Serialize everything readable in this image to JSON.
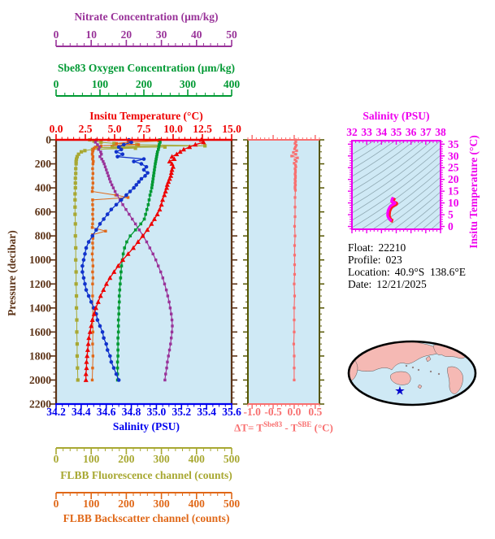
{
  "figure": {
    "bg": "#FFFFFF"
  },
  "colors": {
    "nitrate": "#993399",
    "oxygen": "#009933",
    "temperature": "#EE0000",
    "pressure_axis": "#5C3317",
    "salinity": "#0000EE",
    "salinity_curve": "#1133CC",
    "fluorescence": "#A8A832",
    "backscatter": "#E06818",
    "delta_t": "#F87070",
    "delta_t_side_axis": "#555500",
    "ts_frame": "#EE00EE",
    "ts_curve": "#FF00FF",
    "ts_curve_outline": "#FF2020",
    "contour": "#8FA8B2",
    "plot_bg": "#CFE9F5",
    "map_land": "#F5B9B4",
    "map_outline": "#000000",
    "map_star": "#0000CC"
  },
  "axes": {
    "nitrate": {
      "title": "Nitrate Concentration (μm/kg)",
      "min": 0,
      "max": 50,
      "major": 10,
      "minor": 2,
      "labels": [
        "0",
        "10",
        "20",
        "30",
        "40",
        "50"
      ]
    },
    "oxygen": {
      "title": "Sbe83 Oxygen Concentration (μm/kg)",
      "min": 0,
      "max": 400,
      "major": 100,
      "minor": 20,
      "labels": [
        "0",
        "100",
        "200",
        "300",
        "400"
      ]
    },
    "temperature": {
      "title": "Insitu Temperature (°C)",
      "min": 0,
      "max": 15,
      "major": 2.5,
      "minor": 0.5,
      "labels": [
        "0.0",
        "2.5",
        "5.0",
        "7.5",
        "10.0",
        "12.5",
        "15.0"
      ]
    },
    "pressure": {
      "title": "Pressure (decibar)",
      "min": 0,
      "max": 2200,
      "major": 200,
      "minor": 50,
      "labels": [
        "0",
        "200",
        "400",
        "600",
        "800",
        "1000",
        "1200",
        "1400",
        "1600",
        "1800",
        "2000",
        "2200"
      ]
    },
    "salinity": {
      "title": "Salinity (PSU)",
      "min": 34.2,
      "max": 35.6,
      "major": 0.2,
      "minor": 0.05,
      "labels": [
        "34.2",
        "34.4",
        "34.6",
        "34.8",
        "35.0",
        "35.2",
        "35.4",
        "35.6"
      ]
    },
    "fluorescence": {
      "title": "FLBB Fluorescence channel (counts)",
      "min": 0,
      "max": 500,
      "major": 100,
      "minor": 20,
      "labels": [
        "0",
        "100",
        "200",
        "300",
        "400",
        "500"
      ]
    },
    "backscatter": {
      "title": "FLBB Backscatter channel (counts)",
      "min": 0,
      "max": 500,
      "major": 100,
      "minor": 20,
      "labels": [
        "0",
        "100",
        "200",
        "300",
        "400",
        "500"
      ]
    },
    "delta_t": {
      "min": -1.1,
      "max": 0.6,
      "major": 0.5,
      "minor": 0.1,
      "labels": [
        "-1.0",
        "-0.5",
        "0.0",
        "0.5"
      ],
      "label_values": [
        -1.0,
        -0.5,
        0.0,
        0.5
      ],
      "formula": {
        "prefix": "ΔT= T",
        "sup1": "Sbe83",
        "mid": " - T",
        "sup2": "SBE",
        "suffix": " (°C)"
      }
    },
    "ts_salinity": {
      "title": "Salinity (PSU)",
      "min": 32,
      "max": 38,
      "major": 1,
      "minor": 0.25,
      "labels": [
        "32",
        "33",
        "34",
        "35",
        "36",
        "37",
        "38"
      ]
    },
    "ts_temperature": {
      "title": "Insitu Temperature (°C)",
      "min": -1.2,
      "max": 36.5,
      "major": 5,
      "minor": 1,
      "labels": [
        "0",
        "5",
        "10",
        "15",
        "20",
        "25",
        "30",
        "35"
      ],
      "label_values": [
        0,
        5,
        10,
        15,
        20,
        25,
        30,
        35
      ]
    }
  },
  "info": {
    "rows": [
      {
        "label": "Float:",
        "value": "22210"
      },
      {
        "label": "Profile:",
        "value": "023"
      },
      {
        "label": "Location:",
        "value": "40.9°S  138.6°E"
      },
      {
        "label": "Date:",
        "value": "12/21/2025"
      }
    ]
  },
  "chart_data": [
    {
      "type": "line",
      "title": "Float profile vs pressure",
      "ylabel": "Pressure (decibar)",
      "y_range": [
        0,
        2200
      ],
      "series": [
        {
          "name": "Insitu Temperature",
          "units": "°C",
          "color_key": "temperature",
          "marker": "triangle",
          "x_range": [
            0,
            15
          ],
          "pressure": [
            0,
            20,
            40,
            60,
            80,
            100,
            120,
            140,
            160,
            180,
            200,
            225,
            250,
            275,
            300,
            325,
            350,
            375,
            400,
            430,
            460,
            500,
            540,
            580,
            620,
            660,
            700,
            750,
            800,
            850,
            900,
            950,
            1000,
            1050,
            1100,
            1150,
            1200,
            1250,
            1300,
            1350,
            1400,
            1450,
            1500,
            1550,
            1600,
            1650,
            1700,
            1750,
            1800,
            1850,
            1900,
            1950,
            2000
          ],
          "values": [
            12.4,
            12.6,
            11.9,
            11.4,
            10.9,
            10.6,
            10.3,
            9.9,
            10.1,
            9.7,
            9.9,
            10.0,
            9.9,
            9.85,
            9.8,
            9.7,
            9.6,
            9.5,
            9.45,
            9.35,
            9.25,
            9.1,
            9.0,
            8.85,
            8.65,
            8.4,
            8.15,
            7.8,
            7.4,
            7.0,
            6.6,
            6.15,
            5.7,
            5.3,
            4.95,
            4.6,
            4.3,
            4.05,
            3.8,
            3.6,
            3.4,
            3.25,
            3.1,
            3.0,
            2.9,
            2.8,
            2.75,
            2.7,
            2.65,
            2.6,
            2.6,
            2.55,
            2.55
          ]
        },
        {
          "name": "Salinity",
          "units": "PSU",
          "color_key": "salinity_curve",
          "marker": "circle",
          "x_range": [
            34.2,
            35.6
          ],
          "pressure": [
            0,
            20,
            40,
            60,
            80,
            100,
            120,
            140,
            160,
            180,
            200,
            225,
            250,
            275,
            300,
            325,
            350,
            375,
            400,
            430,
            460,
            500,
            540,
            580,
            620,
            660,
            700,
            750,
            800,
            850,
            900,
            950,
            1000,
            1050,
            1100,
            1150,
            1200,
            1250,
            1300,
            1350,
            1400,
            1450,
            1500,
            1550,
            1600,
            1650,
            1700,
            1750,
            1800,
            1850,
            1900,
            1950,
            2000
          ],
          "values": [
            34.78,
            34.8,
            34.74,
            34.7,
            34.72,
            34.68,
            34.73,
            34.69,
            34.9,
            34.82,
            34.88,
            34.92,
            34.9,
            34.93,
            34.91,
            34.88,
            34.86,
            34.84,
            34.82,
            34.79,
            34.76,
            34.72,
            34.68,
            34.64,
            34.61,
            34.58,
            34.55,
            34.52,
            34.49,
            34.46,
            34.44,
            34.43,
            34.42,
            34.41,
            34.41,
            34.42,
            34.43,
            34.44,
            34.46,
            34.48,
            34.5,
            34.52,
            34.53,
            34.55,
            34.57,
            34.58,
            34.6,
            34.61,
            34.63,
            34.64,
            34.66,
            34.68,
            34.7
          ]
        },
        {
          "name": "Sbe83 Oxygen Concentration",
          "units": "μm/kg",
          "color_key": "oxygen",
          "marker": "square",
          "x_range": [
            0,
            400
          ],
          "pressure": [
            0,
            20,
            40,
            60,
            80,
            100,
            120,
            140,
            160,
            180,
            200,
            225,
            250,
            275,
            300,
            325,
            350,
            375,
            400,
            430,
            460,
            500,
            540,
            580,
            620,
            660,
            700,
            750,
            800,
            850,
            900,
            950,
            1000,
            1050,
            1100,
            1150,
            1200,
            1250,
            1300,
            1350,
            1400,
            1450,
            1500,
            1550,
            1600,
            1650,
            1700,
            1750,
            1800,
            1850,
            1900,
            1950,
            2000
          ],
          "values": [
            236,
            237,
            235,
            234,
            233,
            231,
            230,
            229,
            228,
            227,
            226,
            225,
            224,
            223,
            222,
            221,
            220,
            219,
            218,
            216,
            214,
            212,
            210,
            207,
            204,
            201,
            193,
            181,
            169,
            161,
            156,
            153,
            151,
            149,
            148,
            147,
            146,
            145,
            144,
            144,
            143,
            143,
            142,
            142,
            142,
            141,
            141,
            141,
            141,
            140,
            140,
            140,
            140
          ]
        },
        {
          "name": "Nitrate Concentration",
          "units": "μm/kg",
          "color_key": "nitrate",
          "marker": "square",
          "x_range": [
            0,
            50
          ],
          "pressure": [
            0,
            20,
            40,
            60,
            80,
            100,
            120,
            140,
            160,
            180,
            200,
            225,
            250,
            275,
            300,
            325,
            350,
            375,
            400,
            430,
            460,
            500,
            540,
            580,
            620,
            660,
            700,
            750,
            800,
            850,
            900,
            950,
            1000,
            1050,
            1100,
            1150,
            1200,
            1250,
            1300,
            1350,
            1400,
            1450,
            1500,
            1550,
            1600,
            1650,
            1700,
            1750,
            1800,
            1850,
            1900,
            1950,
            2000
          ],
          "values": [
            11.5,
            11.2,
            11.8,
            12.4,
            12.1,
            12.7,
            12.9,
            12.5,
            13.0,
            13.4,
            13.7,
            14.0,
            14.3,
            14.6,
            14.9,
            15.2,
            15.5,
            15.9,
            16.3,
            16.8,
            17.4,
            18.2,
            19.0,
            19.9,
            20.8,
            21.7,
            22.6,
            23.7,
            24.8,
            25.8,
            26.7,
            27.6,
            28.4,
            29.1,
            29.8,
            30.4,
            30.9,
            31.4,
            31.8,
            32.2,
            32.5,
            32.8,
            33.0,
            33.1,
            33.0,
            32.8,
            32.6,
            32.3,
            32.0,
            31.7,
            31.5,
            31.2,
            31.0
          ]
        },
        {
          "name": "FLBB Fluorescence channel",
          "units": "counts",
          "color_key": "fluorescence",
          "marker": "square",
          "x_range": [
            0,
            500
          ],
          "pressure": [
            0,
            10,
            20,
            30,
            40,
            50,
            55,
            60,
            65,
            70,
            80,
            90,
            100,
            120,
            140,
            160,
            180,
            200,
            240,
            280,
            320,
            360,
            400,
            450,
            500,
            560,
            620,
            700,
            800,
            900,
            1000,
            1100,
            1200,
            1300,
            1400,
            1500,
            1600,
            1700,
            1800,
            1900,
            2000
          ],
          "values": [
            96,
            108,
            128,
            165,
            230,
            424,
            160,
            310,
            120,
            226,
            104,
            82,
            72,
            64,
            60,
            58,
            57,
            57,
            56,
            56,
            55,
            55,
            55,
            54,
            54,
            54,
            54,
            55,
            55,
            56,
            56,
            57,
            57,
            58,
            58,
            59,
            59,
            60,
            60,
            61,
            62
          ]
        },
        {
          "name": "FLBB Backscatter channel",
          "units": "counts",
          "color_key": "backscatter",
          "marker": "square",
          "x_range": [
            0,
            500
          ],
          "pressure": [
            0,
            10,
            20,
            30,
            40,
            50,
            60,
            70,
            80,
            90,
            100,
            120,
            140,
            160,
            180,
            200,
            240,
            280,
            320,
            360,
            400,
            430,
            460,
            480,
            500,
            540,
            580,
            620,
            660,
            700,
            730,
            760,
            790,
            820,
            860,
            900,
            950,
            1000,
            1050,
            1100,
            1150,
            1200,
            1300,
            1400,
            1500,
            1600,
            1700,
            1800,
            1900,
            2000
          ],
          "values": [
            150,
            292,
            205,
            172,
            235,
            128,
            112,
            108,
            106,
            105,
            104,
            103,
            105,
            104,
            106,
            105,
            104,
            105,
            104,
            105,
            104,
            103,
            170,
            205,
            104,
            104,
            105,
            104,
            105,
            104,
            103,
            141,
            104,
            105,
            104,
            105,
            103,
            104,
            105,
            104,
            105,
            104,
            104,
            105,
            104,
            105,
            104,
            105,
            104,
            103
          ]
        }
      ]
    },
    {
      "type": "line",
      "title": "Temperature difference profile",
      "xlabel": "ΔT= T^Sbe83 - T^SBE (°C)",
      "x_range": [
        -1.1,
        0.6
      ],
      "ylabel": "Pressure (decibar)",
      "y_range": [
        0,
        2200
      ],
      "color_key": "delta_t",
      "pressure": [
        0,
        15,
        30,
        45,
        60,
        75,
        90,
        105,
        120,
        135,
        150,
        165,
        180,
        195,
        210,
        225,
        240,
        255,
        270,
        285,
        300,
        315,
        330,
        345,
        360,
        375,
        390,
        405,
        420,
        480,
        560,
        640,
        720,
        800,
        880,
        960,
        1040,
        1120,
        1200,
        1300,
        1400,
        1500,
        1600,
        1700,
        1800,
        1900,
        2000
      ],
      "values": [
        0.03,
        0.04,
        0.02,
        0.05,
        0.03,
        0.01,
        0.06,
        -0.02,
        0.04,
        -0.06,
        0.08,
        0.02,
        0.05,
        0.0,
        0.03,
        0.04,
        0.02,
        0.03,
        0.03,
        0.02,
        0.03,
        0.03,
        0.02,
        0.03,
        0.02,
        0.03,
        0.02,
        0.02,
        0.03,
        0.02,
        0.02,
        0.02,
        0.01,
        0.02,
        0.01,
        0.01,
        0.01,
        0.01,
        0.0,
        0.01,
        0.0,
        0.0,
        0.0,
        -0.01,
        0.0,
        0.0,
        0.0
      ]
    },
    {
      "type": "line",
      "title": "T-S diagram",
      "xlabel": "Salinity (PSU)",
      "ylabel": "Insitu Temperature (°C)",
      "x_range": [
        32,
        38
      ],
      "y_range": [
        0,
        35
      ],
      "color_key": "ts_curve",
      "salinity": [
        34.78,
        34.7,
        34.68,
        34.9,
        34.88,
        34.92,
        34.91,
        34.86,
        34.82,
        34.72,
        34.64,
        34.55,
        34.49,
        34.44,
        34.42,
        34.41,
        34.43,
        34.46,
        34.5,
        34.53,
        34.57,
        34.6,
        34.63,
        34.66,
        34.7
      ],
      "temperature": [
        12.4,
        11.4,
        10.6,
        10.1,
        9.9,
        10.0,
        9.8,
        9.6,
        9.45,
        9.1,
        8.85,
        8.15,
        7.4,
        6.6,
        5.7,
        4.95,
        4.3,
        3.8,
        3.4,
        3.1,
        2.9,
        2.75,
        2.65,
        2.6,
        2.55
      ]
    }
  ]
}
